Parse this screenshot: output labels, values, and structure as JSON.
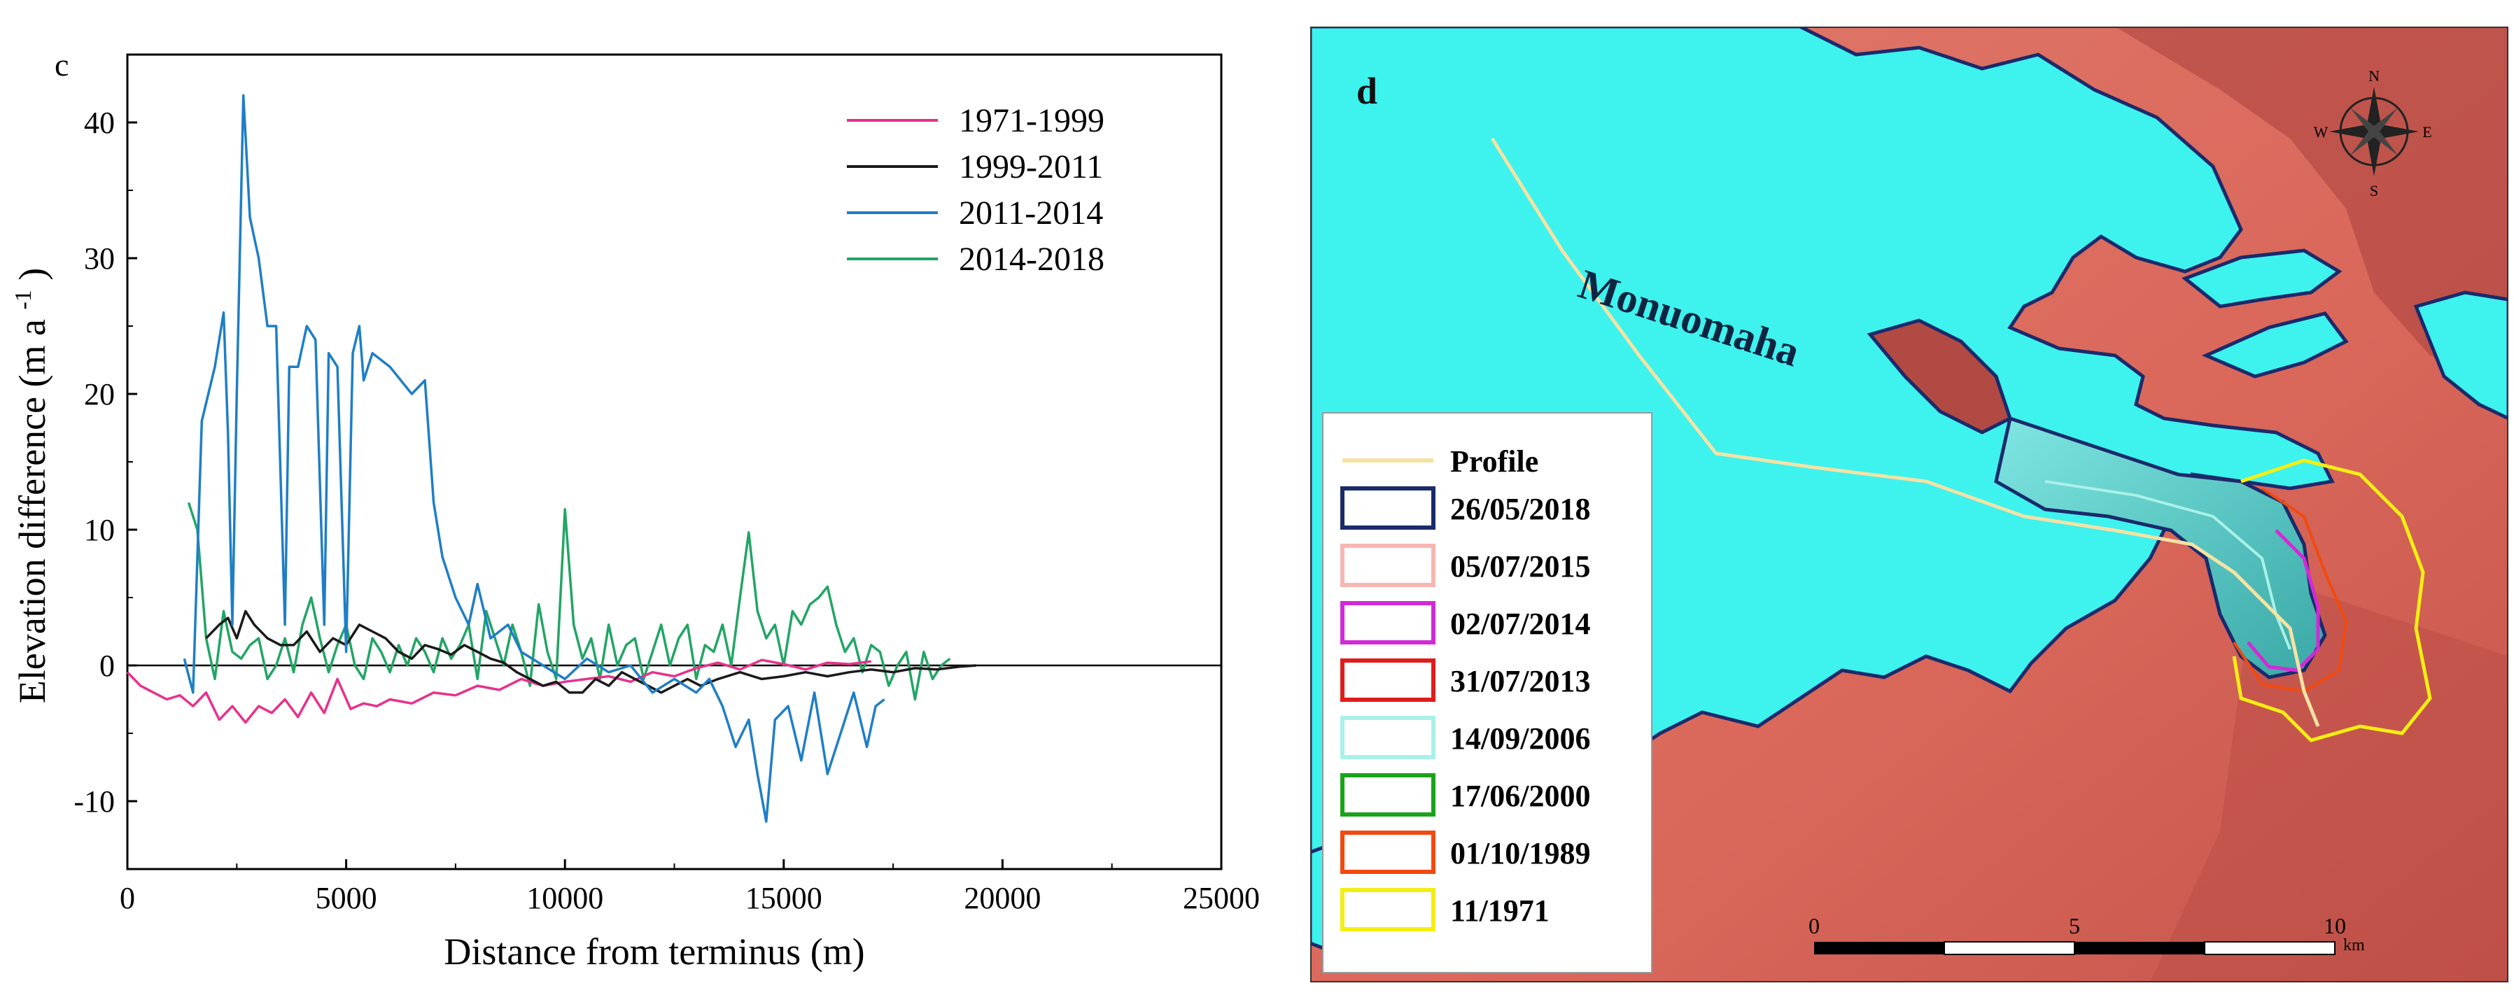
{
  "panel_c": {
    "label": "c",
    "chart_data": {
      "type": "line",
      "title": "",
      "xlabel": "Distance from terminus (m)",
      "ylabel_main": "Elevation difference (m a",
      "ylabel_sup": "-1",
      "ylabel_end": ")",
      "xlim": [
        0,
        25000
      ],
      "ylim": [
        -15,
        45
      ],
      "xticks": [
        0,
        5000,
        10000,
        15000,
        20000,
        25000
      ],
      "xtick_labels": [
        "0",
        "5000",
        "10000",
        "15000",
        "20000",
        "25000"
      ],
      "yticks": [
        -10,
        0,
        10,
        20,
        30,
        40
      ],
      "ytick_labels": [
        "-10",
        "0",
        "10",
        "20",
        "30",
        "40"
      ],
      "grid": false,
      "legend_position": "top-right",
      "zero_line": true,
      "series": [
        {
          "name": "1971-1999",
          "color": "#e8308c",
          "x": [
            0,
            300,
            600,
            900,
            1200,
            1500,
            1800,
            2100,
            2400,
            2700,
            3000,
            3300,
            3600,
            3900,
            4200,
            4500,
            4800,
            5100,
            5400,
            5700,
            6000,
            6500,
            7000,
            7500,
            8000,
            8500,
            9000,
            9500,
            10000,
            10500,
            11000,
            11500,
            12000,
            12500,
            13000,
            13500,
            14000,
            14500,
            15000,
            15500,
            16000,
            16500,
            17000
          ],
          "y": [
            -0.5,
            -1.5,
            -2.0,
            -2.5,
            -2.2,
            -3.0,
            -2.0,
            -4.0,
            -3.0,
            -4.2,
            -3.0,
            -3.5,
            -2.5,
            -3.8,
            -2.0,
            -3.5,
            -1.0,
            -3.2,
            -2.8,
            -3.0,
            -2.5,
            -2.8,
            -2.0,
            -2.2,
            -1.5,
            -1.8,
            -1.0,
            -1.5,
            -1.2,
            -1.0,
            -0.8,
            -1.2,
            -0.5,
            -0.8,
            -0.2,
            0.2,
            -0.3,
            0.4,
            0.1,
            -0.3,
            0.2,
            0.1,
            0.3
          ]
        },
        {
          "name": "1999-2011",
          "color": "#1a1a1a",
          "x": [
            1800,
            2100,
            2300,
            2500,
            2700,
            2900,
            3200,
            3500,
            3800,
            4100,
            4400,
            4700,
            5000,
            5300,
            5600,
            5900,
            6200,
            6500,
            6800,
            7100,
            7400,
            7700,
            8000,
            8300,
            8600,
            8900,
            9200,
            9500,
            9800,
            10100,
            10400,
            10700,
            11000,
            11300,
            11600,
            11900,
            12200,
            12500,
            12800,
            13100,
            13500,
            14000,
            14500,
            15000,
            15500,
            16000,
            16500,
            17000,
            17500,
            18000,
            18500,
            19000,
            19400
          ],
          "y": [
            2.0,
            3.0,
            3.5,
            2.0,
            4.0,
            3.0,
            2.0,
            1.5,
            1.5,
            2.5,
            1.0,
            2.0,
            1.5,
            3.0,
            2.5,
            2.0,
            1.0,
            0.5,
            1.5,
            1.2,
            0.8,
            1.5,
            1.0,
            0.5,
            0.2,
            -0.5,
            -1.0,
            -1.5,
            -1.2,
            -2.0,
            -2.0,
            -1.0,
            -1.5,
            -0.5,
            -1.0,
            -1.5,
            -2.0,
            -1.5,
            -1.0,
            -1.5,
            -1.0,
            -0.5,
            -1.0,
            -0.8,
            -0.5,
            -0.8,
            -0.5,
            -0.3,
            -0.5,
            -0.2,
            -0.3,
            -0.1,
            0.0
          ]
        },
        {
          "name": "2011-2014",
          "color": "#1f7ec6",
          "x": [
            1300,
            1500,
            1700,
            2000,
            2200,
            2300,
            2400,
            2500,
            2650,
            2800,
            3000,
            3200,
            3400,
            3600,
            3700,
            3900,
            4100,
            4300,
            4500,
            4600,
            4800,
            5000,
            5150,
            5300,
            5400,
            5600,
            6000,
            6500,
            6800,
            7000,
            7200,
            7500,
            7800,
            8000,
            8300,
            8700,
            9000,
            9500,
            10000,
            10500,
            11000,
            11500,
            12000,
            12500,
            13000,
            13300,
            13600,
            13900,
            14200,
            14400,
            14600,
            14800,
            15100,
            15400,
            15700,
            16000,
            16300,
            16600,
            16900,
            17100,
            17300
          ],
          "y": [
            0.5,
            -2.0,
            18.0,
            22.0,
            26.0,
            17.0,
            3.0,
            20.0,
            42.0,
            33.0,
            30.0,
            25.0,
            25.0,
            3.0,
            22.0,
            22.0,
            25.0,
            24.0,
            3.0,
            23.0,
            22.0,
            1.0,
            23.0,
            25.0,
            21.0,
            23.0,
            22.0,
            20.0,
            21.0,
            12.0,
            8.0,
            5.0,
            3.0,
            6.0,
            2.0,
            3.0,
            1.0,
            0.0,
            -1.0,
            0.5,
            -0.5,
            0.0,
            -2.0,
            -1.0,
            -2.0,
            -1.0,
            -3.0,
            -6.0,
            -4.0,
            -8.0,
            -11.5,
            -4.0,
            -3.0,
            -7.0,
            -2.0,
            -8.0,
            -5.0,
            -2.0,
            -6.0,
            -3.0,
            -2.5
          ]
        },
        {
          "name": "2014-2018",
          "color": "#22a565",
          "x": [
            1400,
            1600,
            1800,
            2000,
            2200,
            2400,
            2600,
            2800,
            3000,
            3200,
            3400,
            3600,
            3800,
            4000,
            4200,
            4400,
            4600,
            4800,
            5000,
            5200,
            5400,
            5600,
            5800,
            6000,
            6200,
            6400,
            6600,
            6800,
            7000,
            7200,
            7400,
            7600,
            7800,
            8000,
            8200,
            8400,
            8600,
            8800,
            9000,
            9200,
            9400,
            9600,
            9800,
            10000,
            10200,
            10400,
            10600,
            10800,
            11000,
            11200,
            11400,
            11600,
            11800,
            12000,
            12200,
            12400,
            12600,
            12800,
            13000,
            13200,
            13400,
            13600,
            13800,
            14000,
            14200,
            14400,
            14600,
            14800,
            15000,
            15200,
            15400,
            15600,
            15800,
            16000,
            16200,
            16400,
            16600,
            16800,
            17000,
            17200,
            17400,
            17600,
            17800,
            18000,
            18200,
            18400,
            18600,
            18800
          ],
          "y": [
            12.0,
            10.0,
            2.0,
            -1.0,
            4.0,
            1.0,
            0.5,
            1.5,
            2.0,
            -1.0,
            0.0,
            2.0,
            -0.5,
            3.0,
            5.0,
            2.0,
            -0.5,
            1.5,
            3.0,
            0.0,
            -1.0,
            2.0,
            1.0,
            -0.5,
            1.5,
            0.0,
            2.0,
            1.0,
            -0.5,
            2.0,
            0.5,
            1.5,
            3.0,
            -1.0,
            4.0,
            2.0,
            0.0,
            3.0,
            1.0,
            -1.5,
            4.5,
            1.0,
            -1.0,
            11.5,
            3.0,
            0.5,
            2.0,
            -1.0,
            3.0,
            0.0,
            1.5,
            2.0,
            -1.0,
            1.0,
            3.0,
            0.0,
            2.0,
            3.0,
            -1.0,
            1.5,
            1.0,
            3.0,
            0.0,
            5.0,
            9.8,
            4.0,
            2.0,
            3.0,
            0.0,
            4.0,
            3.0,
            4.5,
            5.0,
            5.8,
            3.0,
            1.0,
            2.0,
            -0.5,
            1.5,
            1.0,
            -1.5,
            0.0,
            1.0,
            -2.5,
            1.0,
            -1.0,
            0.0,
            0.5
          ]
        }
      ]
    }
  },
  "panel_d": {
    "label": "d",
    "glacier_name": "Monuomaha",
    "compass": {
      "n": "N",
      "s": "S",
      "e": "E",
      "w": "W"
    },
    "legend": {
      "profile_label": "Profile",
      "profile_color": "#f4e2a4",
      "entries": [
        {
          "label": "26/05/2018",
          "color": "#1b2a6b"
        },
        {
          "label": "05/07/2015",
          "color": "#f7b7b2"
        },
        {
          "label": "02/07/2014",
          "color": "#d22ad6"
        },
        {
          "label": "31/07/2013",
          "color": "#e01c1c"
        },
        {
          "label": "14/09/2006",
          "color": "#a9f1e6"
        },
        {
          "label": "17/06/2000",
          "color": "#1aa31a"
        },
        {
          "label": "01/10/1989",
          "color": "#f04a10"
        },
        {
          "label": "11/1971",
          "color": "#f4ee14"
        }
      ]
    },
    "scalebar": {
      "labels": [
        "0",
        "5",
        "10"
      ],
      "unit": "km"
    },
    "colors": {
      "ice": "#3ef2ee",
      "terrain": "#d9675a",
      "terrain_dark": "#b24a44",
      "tongue": "#57c6c3",
      "outline": "#1b2a6b"
    }
  }
}
